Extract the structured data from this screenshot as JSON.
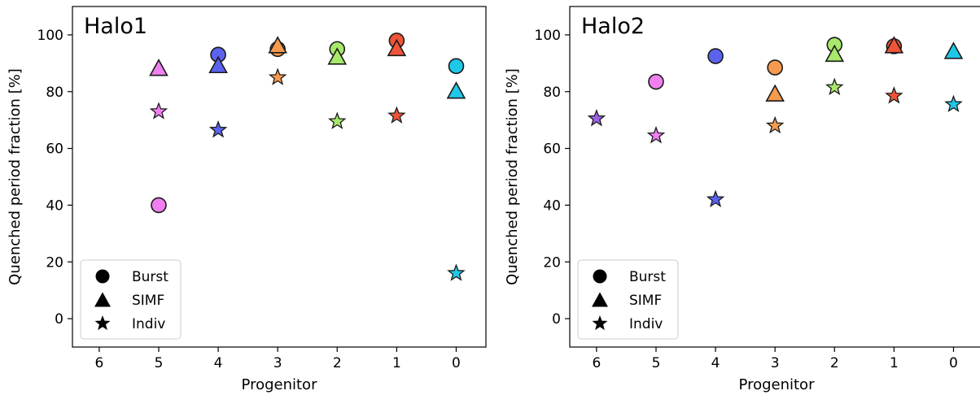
{
  "chart_data": [
    {
      "type": "scatter",
      "title": "Halo1",
      "xlabel": "Progenitor",
      "ylabel": "Quenched period fraction [%]",
      "x_ticks": [
        6,
        5,
        4,
        3,
        2,
        1,
        0
      ],
      "x_reversed": true,
      "xlim": [
        6.45,
        -0.5
      ],
      "ylim": [
        -10,
        110
      ],
      "y_ticks": [
        0,
        20,
        40,
        60,
        80,
        100
      ],
      "grid": false,
      "legend_position": "lower-left",
      "legend": [
        {
          "label": "Burst",
          "marker": "circle"
        },
        {
          "label": "SIMF",
          "marker": "triangle"
        },
        {
          "label": "Indiv",
          "marker": "star"
        }
      ],
      "series": [
        {
          "name": "Burst",
          "marker": "circle",
          "points": [
            {
              "x": 5,
              "y": 40,
              "color": "#f080f0"
            },
            {
              "x": 4,
              "y": 93,
              "color": "#5b63ee"
            },
            {
              "x": 3,
              "y": 95,
              "color": "#f59a4f"
            },
            {
              "x": 2,
              "y": 95,
              "color": "#a8e86a"
            },
            {
              "x": 1,
              "y": 98,
              "color": "#ee5538"
            },
            {
              "x": 0,
              "y": 89,
              "color": "#1fc8e8"
            }
          ]
        },
        {
          "name": "SIMF",
          "marker": "triangle",
          "points": [
            {
              "x": 5,
              "y": 88,
              "color": "#f080f0"
            },
            {
              "x": 4,
              "y": 89,
              "color": "#5b63ee"
            },
            {
              "x": 3,
              "y": 96,
              "color": "#f59a4f"
            },
            {
              "x": 2,
              "y": 92,
              "color": "#a8e86a"
            },
            {
              "x": 1,
              "y": 95,
              "color": "#ee5538"
            },
            {
              "x": 0,
              "y": 80,
              "color": "#1fc8e8"
            }
          ]
        },
        {
          "name": "Indiv",
          "marker": "star",
          "points": [
            {
              "x": 5,
              "y": 73,
              "color": "#f080f0"
            },
            {
              "x": 4,
              "y": 66.5,
              "color": "#5b63ee"
            },
            {
              "x": 3,
              "y": 85,
              "color": "#f59a4f"
            },
            {
              "x": 2,
              "y": 69.5,
              "color": "#a8e86a"
            },
            {
              "x": 1,
              "y": 71.5,
              "color": "#ee5538"
            },
            {
              "x": 0,
              "y": 16,
              "color": "#1fc8e8"
            }
          ]
        }
      ]
    },
    {
      "type": "scatter",
      "title": "Halo2",
      "xlabel": "Progenitor",
      "ylabel": "Quenched period fraction [%]",
      "x_ticks": [
        6,
        5,
        4,
        3,
        2,
        1,
        0
      ],
      "x_reversed": true,
      "xlim": [
        6.45,
        -0.5
      ],
      "ylim": [
        -10,
        110
      ],
      "y_ticks": [
        0,
        20,
        40,
        60,
        80,
        100
      ],
      "grid": false,
      "legend_position": "lower-left",
      "legend": [
        {
          "label": "Burst",
          "marker": "circle"
        },
        {
          "label": "SIMF",
          "marker": "triangle"
        },
        {
          "label": "Indiv",
          "marker": "star"
        }
      ],
      "series": [
        {
          "name": "Burst",
          "marker": "circle",
          "points": [
            {
              "x": 5,
              "y": 83.5,
              "color": "#f080f0"
            },
            {
              "x": 4,
              "y": 92.5,
              "color": "#5b63ee"
            },
            {
              "x": 3,
              "y": 88.5,
              "color": "#f59a4f"
            },
            {
              "x": 2,
              "y": 96.5,
              "color": "#a8e86a"
            },
            {
              "x": 1,
              "y": 96,
              "color": "#ee5538"
            }
          ]
        },
        {
          "name": "SIMF",
          "marker": "triangle",
          "points": [
            {
              "x": 3,
              "y": 79,
              "color": "#f59a4f"
            },
            {
              "x": 2,
              "y": 93,
              "color": "#a8e86a"
            },
            {
              "x": 1,
              "y": 96,
              "color": "#ee5538"
            },
            {
              "x": 0,
              "y": 94,
              "color": "#1fc8e8"
            }
          ]
        },
        {
          "name": "Indiv",
          "marker": "star",
          "points": [
            {
              "x": 6,
              "y": 70.5,
              "color": "#9c60e8"
            },
            {
              "x": 5,
              "y": 64.5,
              "color": "#f080f0"
            },
            {
              "x": 4,
              "y": 42,
              "color": "#5b63ee"
            },
            {
              "x": 3,
              "y": 68,
              "color": "#f59a4f"
            },
            {
              "x": 2,
              "y": 81.5,
              "color": "#a8e86a"
            },
            {
              "x": 1,
              "y": 78.5,
              "color": "#ee5538"
            },
            {
              "x": 0,
              "y": 75.5,
              "color": "#1fc8e8"
            }
          ]
        }
      ]
    }
  ]
}
